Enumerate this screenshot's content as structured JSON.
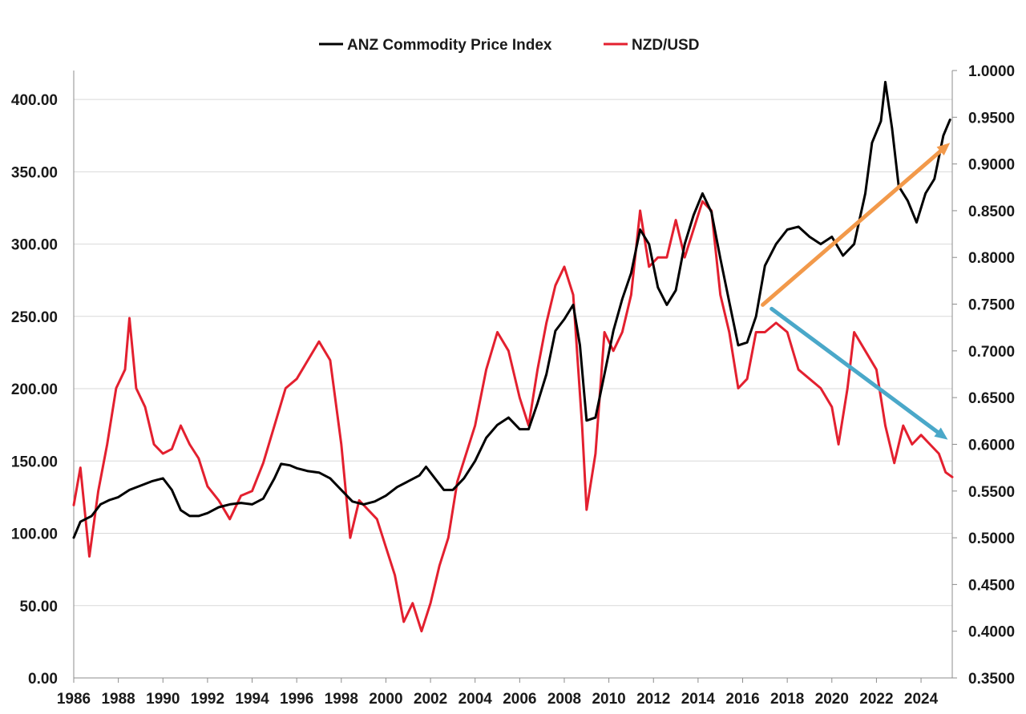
{
  "chart_data": {
    "type": "line",
    "title": "",
    "xlabel": "",
    "ylabel": "",
    "y2label": "",
    "grid": true,
    "legend_position": "top-center",
    "x_range": [
      1986.0,
      2025.4
    ],
    "x_ticks": [
      "1986",
      "1988",
      "1990",
      "1992",
      "1994",
      "1996",
      "1998",
      "2000",
      "2002",
      "2004",
      "2006",
      "2008",
      "2010",
      "2012",
      "2014",
      "2016",
      "2018",
      "2020",
      "2022",
      "2024"
    ],
    "y_left": {
      "range": [
        0,
        420
      ],
      "ticks": [
        "0.00",
        "50.00",
        "100.00",
        "150.00",
        "200.00",
        "250.00",
        "300.00",
        "350.00",
        "400.00"
      ]
    },
    "y_right": {
      "range": [
        0.35,
        1.0
      ],
      "ticks": [
        "0.3500",
        "0.4000",
        "0.4500",
        "0.5000",
        "0.5500",
        "0.6000",
        "0.6500",
        "0.7000",
        "0.7500",
        "0.8000",
        "0.8500",
        "0.9000",
        "0.9500",
        "1.0000"
      ]
    },
    "series": [
      {
        "name": "ANZ Commodity Price Index",
        "axis": "left",
        "color": "#000000",
        "points": [
          [
            1986.0,
            97
          ],
          [
            1986.3,
            108
          ],
          [
            1986.8,
            112
          ],
          [
            1987.2,
            120
          ],
          [
            1987.6,
            123
          ],
          [
            1988.0,
            125
          ],
          [
            1988.5,
            130
          ],
          [
            1989.0,
            133
          ],
          [
            1989.5,
            136
          ],
          [
            1990.0,
            138
          ],
          [
            1990.4,
            130
          ],
          [
            1990.8,
            116
          ],
          [
            1991.2,
            112
          ],
          [
            1991.6,
            112
          ],
          [
            1992.0,
            114
          ],
          [
            1992.5,
            118
          ],
          [
            1993.0,
            120
          ],
          [
            1993.5,
            121
          ],
          [
            1994.0,
            120
          ],
          [
            1994.5,
            124
          ],
          [
            1995.0,
            138
          ],
          [
            1995.3,
            148
          ],
          [
            1995.7,
            147
          ],
          [
            1996.0,
            145
          ],
          [
            1996.5,
            143
          ],
          [
            1997.0,
            142
          ],
          [
            1997.5,
            138
          ],
          [
            1998.0,
            130
          ],
          [
            1998.5,
            122
          ],
          [
            1999.0,
            120
          ],
          [
            1999.5,
            122
          ],
          [
            2000.0,
            126
          ],
          [
            2000.5,
            132
          ],
          [
            2001.0,
            136
          ],
          [
            2001.5,
            140
          ],
          [
            2001.8,
            146
          ],
          [
            2002.2,
            138
          ],
          [
            2002.6,
            130
          ],
          [
            2003.0,
            130
          ],
          [
            2003.5,
            138
          ],
          [
            2004.0,
            150
          ],
          [
            2004.5,
            166
          ],
          [
            2005.0,
            175
          ],
          [
            2005.5,
            180
          ],
          [
            2006.0,
            172
          ],
          [
            2006.4,
            172
          ],
          [
            2006.8,
            190
          ],
          [
            2007.2,
            210
          ],
          [
            2007.6,
            240
          ],
          [
            2008.0,
            248
          ],
          [
            2008.4,
            258
          ],
          [
            2008.7,
            230
          ],
          [
            2009.0,
            178
          ],
          [
            2009.4,
            180
          ],
          [
            2009.8,
            210
          ],
          [
            2010.2,
            240
          ],
          [
            2010.6,
            262
          ],
          [
            2011.0,
            280
          ],
          [
            2011.4,
            310
          ],
          [
            2011.8,
            300
          ],
          [
            2012.2,
            270
          ],
          [
            2012.6,
            258
          ],
          [
            2013.0,
            268
          ],
          [
            2013.4,
            300
          ],
          [
            2013.8,
            320
          ],
          [
            2014.2,
            335
          ],
          [
            2014.6,
            322
          ],
          [
            2015.0,
            290
          ],
          [
            2015.4,
            260
          ],
          [
            2015.8,
            230
          ],
          [
            2016.2,
            232
          ],
          [
            2016.6,
            250
          ],
          [
            2017.0,
            285
          ],
          [
            2017.5,
            300
          ],
          [
            2018.0,
            310
          ],
          [
            2018.5,
            312
          ],
          [
            2019.0,
            305
          ],
          [
            2019.5,
            300
          ],
          [
            2020.0,
            305
          ],
          [
            2020.5,
            292
          ],
          [
            2021.0,
            300
          ],
          [
            2021.5,
            335
          ],
          [
            2021.8,
            370
          ],
          [
            2022.2,
            385
          ],
          [
            2022.4,
            412
          ],
          [
            2022.7,
            380
          ],
          [
            2023.0,
            340
          ],
          [
            2023.4,
            330
          ],
          [
            2023.8,
            315
          ],
          [
            2024.2,
            335
          ],
          [
            2024.6,
            345
          ],
          [
            2025.0,
            375
          ],
          [
            2025.3,
            386
          ]
        ]
      },
      {
        "name": "NZD/USD",
        "axis": "right",
        "color": "#e3202f",
        "points": [
          [
            1986.0,
            0.535
          ],
          [
            1986.3,
            0.575
          ],
          [
            1986.7,
            0.48
          ],
          [
            1987.1,
            0.55
          ],
          [
            1987.5,
            0.6
          ],
          [
            1987.9,
            0.66
          ],
          [
            1988.3,
            0.68
          ],
          [
            1988.5,
            0.735
          ],
          [
            1988.8,
            0.66
          ],
          [
            1989.2,
            0.64
          ],
          [
            1989.6,
            0.6
          ],
          [
            1990.0,
            0.59
          ],
          [
            1990.4,
            0.595
          ],
          [
            1990.8,
            0.62
          ],
          [
            1991.2,
            0.6
          ],
          [
            1991.6,
            0.585
          ],
          [
            1992.0,
            0.555
          ],
          [
            1992.5,
            0.54
          ],
          [
            1993.0,
            0.52
          ],
          [
            1993.5,
            0.545
          ],
          [
            1994.0,
            0.55
          ],
          [
            1994.5,
            0.58
          ],
          [
            1995.0,
            0.62
          ],
          [
            1995.5,
            0.66
          ],
          [
            1996.0,
            0.67
          ],
          [
            1996.5,
            0.69
          ],
          [
            1997.0,
            0.71
          ],
          [
            1997.5,
            0.69
          ],
          [
            1998.0,
            0.6
          ],
          [
            1998.4,
            0.5
          ],
          [
            1998.8,
            0.54
          ],
          [
            1999.2,
            0.53
          ],
          [
            1999.6,
            0.52
          ],
          [
            2000.0,
            0.49
          ],
          [
            2000.4,
            0.46
          ],
          [
            2000.8,
            0.41
          ],
          [
            2001.2,
            0.43
          ],
          [
            2001.6,
            0.4
          ],
          [
            2002.0,
            0.43
          ],
          [
            2002.4,
            0.47
          ],
          [
            2002.8,
            0.5
          ],
          [
            2003.2,
            0.56
          ],
          [
            2003.6,
            0.59
          ],
          [
            2004.0,
            0.62
          ],
          [
            2004.5,
            0.68
          ],
          [
            2005.0,
            0.72
          ],
          [
            2005.5,
            0.7
          ],
          [
            2006.0,
            0.65
          ],
          [
            2006.4,
            0.62
          ],
          [
            2006.8,
            0.68
          ],
          [
            2007.2,
            0.73
          ],
          [
            2007.6,
            0.77
          ],
          [
            2008.0,
            0.79
          ],
          [
            2008.4,
            0.76
          ],
          [
            2008.8,
            0.62
          ],
          [
            2009.0,
            0.53
          ],
          [
            2009.4,
            0.59
          ],
          [
            2009.8,
            0.72
          ],
          [
            2010.2,
            0.7
          ],
          [
            2010.6,
            0.72
          ],
          [
            2011.0,
            0.76
          ],
          [
            2011.4,
            0.85
          ],
          [
            2011.8,
            0.79
          ],
          [
            2012.2,
            0.8
          ],
          [
            2012.6,
            0.8
          ],
          [
            2013.0,
            0.84
          ],
          [
            2013.4,
            0.8
          ],
          [
            2013.8,
            0.83
          ],
          [
            2014.2,
            0.86
          ],
          [
            2014.6,
            0.85
          ],
          [
            2015.0,
            0.76
          ],
          [
            2015.4,
            0.72
          ],
          [
            2015.8,
            0.66
          ],
          [
            2016.2,
            0.67
          ],
          [
            2016.6,
            0.72
          ],
          [
            2017.0,
            0.72
          ],
          [
            2017.5,
            0.73
          ],
          [
            2018.0,
            0.72
          ],
          [
            2018.5,
            0.68
          ],
          [
            2019.0,
            0.67
          ],
          [
            2019.5,
            0.66
          ],
          [
            2020.0,
            0.64
          ],
          [
            2020.3,
            0.6
          ],
          [
            2020.7,
            0.66
          ],
          [
            2021.0,
            0.72
          ],
          [
            2021.5,
            0.7
          ],
          [
            2022.0,
            0.68
          ],
          [
            2022.4,
            0.62
          ],
          [
            2022.8,
            0.58
          ],
          [
            2023.2,
            0.62
          ],
          [
            2023.6,
            0.6
          ],
          [
            2024.0,
            0.61
          ],
          [
            2024.4,
            0.6
          ],
          [
            2024.8,
            0.59
          ],
          [
            2025.1,
            0.57
          ],
          [
            2025.4,
            0.565
          ]
        ]
      }
    ],
    "annotations": [
      {
        "type": "arrow",
        "color": "#f2994a",
        "from": {
          "x": 2016.9,
          "y_left": 258
        },
        "to": {
          "x": 2025.3,
          "y_left": 370
        }
      },
      {
        "type": "arrow",
        "color": "#4aa8c9",
        "from": {
          "x": 2017.3,
          "y_right": 0.745
        },
        "to": {
          "x": 2025.2,
          "y_right": 0.605
        }
      }
    ]
  }
}
